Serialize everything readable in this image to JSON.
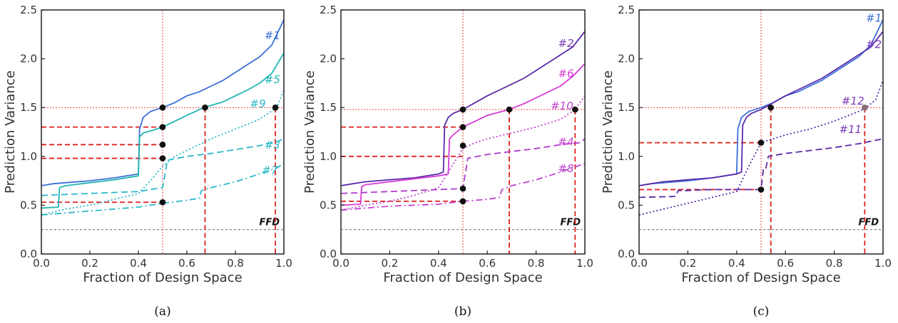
{
  "chart_data": [
    {
      "type": "line",
      "panel_label": "(a)",
      "xlabel": "Fraction of Design Space",
      "ylabel": "Prediction Variance",
      "xlim": [
        0,
        1
      ],
      "ylim": [
        0,
        2.5
      ],
      "xticks": [
        "0.0",
        "0.2",
        "0.4",
        "0.6",
        "0.8",
        "1.0"
      ],
      "yticks": [
        "0.0",
        "0.5",
        "1.0",
        "1.5",
        "2.0",
        "2.5"
      ],
      "reference": {
        "label": "FFD",
        "y": 0.25
      },
      "v_dotted_x": 0.5,
      "h_dotted_y": 1.5,
      "series": [
        {
          "name": "#1",
          "color": "#3a6fd8",
          "dash": "solid",
          "x": [
            0,
            0.05,
            0.1,
            0.2,
            0.3,
            0.4,
            0.405,
            0.42,
            0.45,
            0.5,
            0.55,
            0.6,
            0.65,
            0.7,
            0.75,
            0.8,
            0.85,
            0.9,
            0.95,
            1.0
          ],
          "y": [
            0.7,
            0.72,
            0.73,
            0.75,
            0.78,
            0.82,
            1.28,
            1.4,
            1.46,
            1.5,
            1.55,
            1.62,
            1.66,
            1.72,
            1.78,
            1.86,
            1.94,
            2.02,
            2.14,
            2.4
          ]
        },
        {
          "name": "#5",
          "color": "#1fb5b0",
          "dash": "solid",
          "x": [
            0,
            0.07,
            0.075,
            0.1,
            0.2,
            0.3,
            0.4,
            0.405,
            0.42,
            0.45,
            0.5,
            0.55,
            0.6,
            0.67,
            0.75,
            0.8,
            0.85,
            0.9,
            0.95,
            1.0
          ],
          "y": [
            0.47,
            0.48,
            0.68,
            0.7,
            0.73,
            0.76,
            0.8,
            1.2,
            1.24,
            1.26,
            1.3,
            1.36,
            1.42,
            1.5,
            1.56,
            1.62,
            1.68,
            1.75,
            1.85,
            2.06
          ]
        },
        {
          "name": "#9",
          "color": "#2bb8c8",
          "dash": "dot",
          "x": [
            0,
            0.1,
            0.2,
            0.3,
            0.4,
            0.45,
            0.5,
            0.55,
            0.6,
            0.65,
            0.7,
            0.8,
            0.9,
            0.97,
            1.0
          ],
          "y": [
            0.4,
            0.46,
            0.5,
            0.56,
            0.62,
            0.75,
            0.9,
            1.0,
            1.06,
            1.12,
            1.18,
            1.28,
            1.38,
            1.5,
            1.68
          ]
        },
        {
          "name": "#3",
          "color": "#2bb8c8",
          "dash": "dash",
          "x": [
            0,
            0.2,
            0.4,
            0.45,
            0.5,
            0.52,
            0.6,
            0.7,
            0.8,
            0.9,
            0.97,
            1.0
          ],
          "y": [
            0.6,
            0.62,
            0.64,
            0.66,
            0.68,
            0.96,
            1.0,
            1.03,
            1.07,
            1.11,
            1.15,
            1.18
          ]
        },
        {
          "name": "#7",
          "color": "#2bb8c8",
          "dash": "dashdot",
          "x": [
            0,
            0.2,
            0.4,
            0.5,
            0.6,
            0.65,
            0.66,
            0.7,
            0.8,
            0.9,
            0.97,
            1.0
          ],
          "y": [
            0.4,
            0.44,
            0.48,
            0.52,
            0.55,
            0.57,
            0.65,
            0.68,
            0.74,
            0.82,
            0.88,
            0.93
          ]
        }
      ],
      "label_colors": {
        "#1": "#3a6fd8",
        "#5": "#1fb5b0",
        "#9": "#2bb8c8",
        "#3": "#2bb8c8",
        "#7": "#2bb8c8"
      },
      "label_pos": {
        "#1": [
          0.92,
          2.2
        ],
        "#5": [
          0.92,
          1.75
        ],
        "#9": [
          0.86,
          1.5
        ],
        "#3": [
          0.92,
          1.08
        ],
        "#7": [
          0.91,
          0.82
        ]
      },
      "markers": [
        [
          0.5,
          1.5
        ],
        [
          0.5,
          1.3
        ],
        [
          0.5,
          1.12
        ],
        [
          0.5,
          0.98
        ],
        [
          0.5,
          0.53
        ],
        [
          0.675,
          1.5
        ],
        [
          0.965,
          1.5
        ]
      ],
      "marker_colors": [
        "#111",
        "#111",
        "#111",
        "#111",
        "#111",
        "#111",
        "#111"
      ],
      "hlines": [
        [
          1.3,
          0.5
        ],
        [
          1.12,
          0.5
        ],
        [
          0.98,
          0.5
        ],
        [
          0.53,
          0.5
        ]
      ],
      "vlines": [
        [
          0.675,
          1.5
        ],
        [
          0.965,
          1.5
        ]
      ]
    },
    {
      "type": "line",
      "panel_label": "(b)",
      "xlabel": "Fraction of Design Space",
      "ylabel": "Prediction Variance",
      "xlim": [
        0,
        1
      ],
      "ylim": [
        0,
        2.5
      ],
      "xticks": [
        "0.0",
        "0.2",
        "0.4",
        "0.6",
        "0.8",
        "1.0"
      ],
      "yticks": [
        "0.0",
        "0.5",
        "1.0",
        "1.5",
        "2.0",
        "2.5"
      ],
      "reference": {
        "label": "FFD",
        "y": 0.25
      },
      "v_dotted_x": 0.5,
      "h_dotted_y": 1.48,
      "series": [
        {
          "name": "#2",
          "color": "#5a2aa8",
          "dash": "solid",
          "x": [
            0,
            0.05,
            0.1,
            0.2,
            0.3,
            0.4,
            0.42,
            0.425,
            0.44,
            0.46,
            0.5,
            0.55,
            0.6,
            0.65,
            0.7,
            0.75,
            0.8,
            0.85,
            0.9,
            0.95,
            1.0
          ],
          "y": [
            0.7,
            0.72,
            0.74,
            0.76,
            0.78,
            0.82,
            0.84,
            1.32,
            1.4,
            1.44,
            1.48,
            1.55,
            1.62,
            1.68,
            1.74,
            1.8,
            1.88,
            1.96,
            2.04,
            2.12,
            2.28
          ]
        },
        {
          "name": "#6",
          "color": "#d63ad6",
          "dash": "solid",
          "x": [
            0,
            0.08,
            0.085,
            0.1,
            0.2,
            0.3,
            0.4,
            0.44,
            0.445,
            0.46,
            0.5,
            0.55,
            0.6,
            0.69,
            0.75,
            0.8,
            0.85,
            0.9,
            0.95,
            1.0
          ],
          "y": [
            0.5,
            0.51,
            0.69,
            0.71,
            0.74,
            0.77,
            0.8,
            0.82,
            1.18,
            1.22,
            1.3,
            1.36,
            1.42,
            1.48,
            1.54,
            1.6,
            1.66,
            1.72,
            1.82,
            1.95
          ]
        },
        {
          "name": "#10",
          "color": "#c040d0",
          "dash": "dot",
          "x": [
            0,
            0.1,
            0.2,
            0.3,
            0.4,
            0.45,
            0.5,
            0.55,
            0.6,
            0.65,
            0.7,
            0.8,
            0.9,
            0.96,
            1.0
          ],
          "y": [
            0.45,
            0.5,
            0.54,
            0.6,
            0.68,
            0.88,
            1.08,
            1.14,
            1.18,
            1.21,
            1.24,
            1.3,
            1.38,
            1.48,
            1.62
          ]
        },
        {
          "name": "#4",
          "color": "#b03ad0",
          "dash": "dash",
          "x": [
            0,
            0.2,
            0.4,
            0.5,
            0.52,
            0.6,
            0.7,
            0.8,
            0.9,
            0.98,
            1.0
          ],
          "y": [
            0.62,
            0.64,
            0.66,
            0.67,
            0.98,
            1.02,
            1.05,
            1.08,
            1.12,
            1.14,
            1.18
          ]
        },
        {
          "name": "#8",
          "color": "#c040d0",
          "dash": "dashdot",
          "x": [
            0,
            0.2,
            0.4,
            0.5,
            0.6,
            0.65,
            0.66,
            0.7,
            0.8,
            0.9,
            0.97,
            1.0
          ],
          "y": [
            0.45,
            0.49,
            0.51,
            0.54,
            0.56,
            0.58,
            0.66,
            0.7,
            0.76,
            0.84,
            0.9,
            0.93
          ]
        }
      ],
      "label_colors": {
        "#2": "#7a3ab8",
        "#6": "#d63ad6",
        "#10": "#c040d0",
        "#4": "#c040d0",
        "#8": "#c040d0"
      },
      "label_pos": {
        "#2": [
          0.89,
          2.12
        ],
        "#6": [
          0.89,
          1.81
        ],
        "#10": [
          0.86,
          1.48
        ],
        "#4": [
          0.89,
          1.11
        ],
        "#8": [
          0.89,
          0.84
        ]
      },
      "markers": [
        [
          0.5,
          1.48
        ],
        [
          0.5,
          1.3
        ],
        [
          0.5,
          1.11
        ],
        [
          0.5,
          0.67
        ],
        [
          0.5,
          0.54
        ],
        [
          0.69,
          1.48
        ],
        [
          0.96,
          1.48
        ]
      ],
      "marker_colors": [
        "#111",
        "#111",
        "#111",
        "#111",
        "#111",
        "#111",
        "#111"
      ],
      "hlines": [
        [
          1.3,
          0.5
        ],
        [
          1.0,
          0.5
        ],
        [
          0.54,
          0.5
        ]
      ],
      "vlines": [
        [
          0.69,
          1.48
        ],
        [
          0.96,
          1.48
        ]
      ]
    },
    {
      "type": "line",
      "panel_label": "(c)",
      "xlabel": "Fraction of Design Space",
      "ylabel": "Prediction Variance",
      "xlim": [
        0,
        1
      ],
      "ylim": [
        0,
        2.5
      ],
      "xticks": [
        "0.0",
        "0.2",
        "0.4",
        "0.6",
        "0.8",
        "1.0"
      ],
      "yticks": [
        "0.0",
        "0.5",
        "1.0",
        "1.5",
        "2.0",
        "2.5"
      ],
      "reference": {
        "label": "FFD",
        "y": 0.25
      },
      "v_dotted_x": 0.5,
      "h_dotted_y": 1.5,
      "series": [
        {
          "name": "#1",
          "color": "#3a6fd8",
          "dash": "solid",
          "x": [
            0,
            0.05,
            0.1,
            0.2,
            0.3,
            0.4,
            0.405,
            0.42,
            0.45,
            0.5,
            0.55,
            0.6,
            0.65,
            0.7,
            0.75,
            0.8,
            0.85,
            0.9,
            0.95,
            1.0
          ],
          "y": [
            0.7,
            0.72,
            0.73,
            0.75,
            0.78,
            0.82,
            1.28,
            1.4,
            1.46,
            1.5,
            1.55,
            1.62,
            1.66,
            1.72,
            1.78,
            1.86,
            1.94,
            2.02,
            2.14,
            2.4
          ]
        },
        {
          "name": "#2",
          "color": "#5a2aa8",
          "dash": "solid",
          "x": [
            0,
            0.05,
            0.1,
            0.2,
            0.3,
            0.4,
            0.42,
            0.425,
            0.44,
            0.46,
            0.5,
            0.55,
            0.6,
            0.65,
            0.7,
            0.75,
            0.8,
            0.85,
            0.9,
            0.95,
            1.0
          ],
          "y": [
            0.7,
            0.72,
            0.74,
            0.76,
            0.78,
            0.82,
            0.84,
            1.32,
            1.4,
            1.44,
            1.48,
            1.55,
            1.62,
            1.68,
            1.74,
            1.8,
            1.88,
            1.96,
            2.04,
            2.12,
            2.28
          ]
        },
        {
          "name": "#12",
          "color": "#5a2aa8",
          "dash": "dot",
          "x": [
            0,
            0.1,
            0.2,
            0.3,
            0.4,
            0.45,
            0.5,
            0.55,
            0.6,
            0.7,
            0.8,
            0.9,
            0.93,
            0.97,
            1.0
          ],
          "y": [
            0.4,
            0.46,
            0.52,
            0.58,
            0.64,
            0.9,
            1.14,
            1.18,
            1.22,
            1.28,
            1.36,
            1.46,
            1.5,
            1.58,
            1.78
          ]
        },
        {
          "name": "#11",
          "color": "#5a2aa8",
          "dash": "dash",
          "x": [
            0,
            0.15,
            0.16,
            0.2,
            0.3,
            0.4,
            0.5,
            0.51,
            0.52,
            0.53,
            0.6,
            0.7,
            0.8,
            0.9,
            1.0
          ],
          "y": [
            0.58,
            0.59,
            0.65,
            0.65,
            0.66,
            0.66,
            0.66,
            0.88,
            0.88,
            1.0,
            1.03,
            1.06,
            1.09,
            1.13,
            1.18
          ]
        }
      ],
      "label_colors": {
        "#1": "#3a6fd8",
        "#2": "#7a3ab8",
        "#12": "#7a3ab8",
        "#11": "#7a3ab8"
      },
      "label_pos": {
        "#1": [
          0.93,
          2.38
        ],
        "#2": [
          0.93,
          2.11
        ],
        "#12": [
          0.83,
          1.53
        ],
        "#11": [
          0.82,
          1.24
        ]
      },
      "markers": [
        [
          0.54,
          1.5
        ],
        [
          0.5,
          1.14
        ],
        [
          0.5,
          0.66
        ],
        [
          0.925,
          1.5
        ]
      ],
      "marker_colors": [
        "#111",
        "#111",
        "#111",
        "#8a7070"
      ],
      "hlines": [
        [
          1.14,
          0.5
        ],
        [
          0.66,
          0.5
        ]
      ],
      "vlines": [
        [
          0.54,
          1.5
        ],
        [
          0.925,
          1.5
        ]
      ]
    }
  ]
}
